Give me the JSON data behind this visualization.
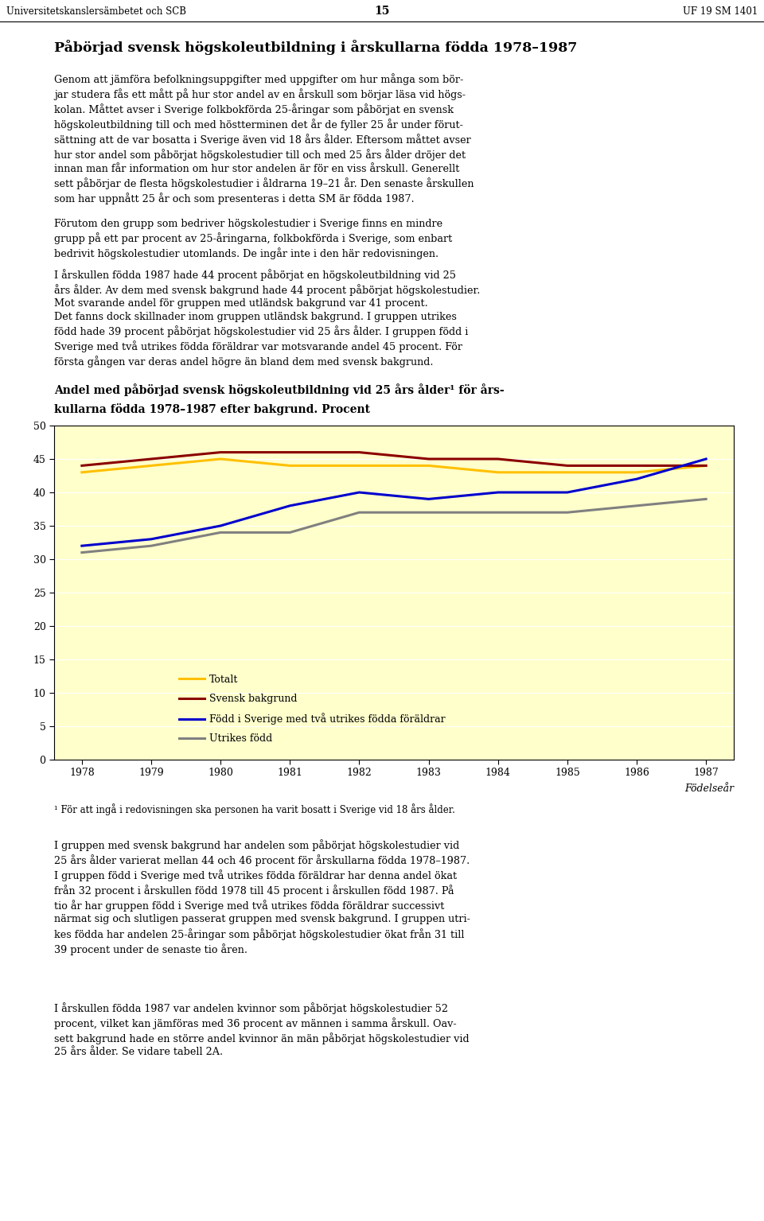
{
  "years": [
    1978,
    1979,
    1980,
    1981,
    1982,
    1983,
    1984,
    1985,
    1986,
    1987
  ],
  "totalt": [
    43,
    44,
    45,
    44,
    44,
    44,
    43,
    43,
    43,
    44
  ],
  "svensk_bakgrund": [
    44,
    45,
    46,
    46,
    46,
    45,
    45,
    44,
    44,
    44
  ],
  "fodd_sverige_utrikes_foraldrar": [
    32,
    33,
    35,
    38,
    40,
    39,
    40,
    40,
    42,
    45
  ],
  "utrikes_fodd": [
    31,
    32,
    34,
    34,
    37,
    37,
    37,
    37,
    38,
    39
  ],
  "color_totalt": "#FFC000",
  "color_svensk": "#8B0000",
  "color_fodd_sverige": "#0000CD",
  "color_utrikes": "#808080",
  "ylim": [
    0,
    50
  ],
  "yticks": [
    0,
    5,
    10,
    15,
    20,
    25,
    30,
    35,
    40,
    45,
    50
  ],
  "bg_color": "#FFFFCC",
  "header_left": "Universitetskanslersämbetet och SCB",
  "header_center": "15",
  "header_right": "UF 19 SM 1401",
  "main_heading": "Påbörjad svensk högskoleutbildning i årskullarna födda 1978–1987",
  "para1": "Genom att jämföra befolkningsuppgifter med uppgifter om hur många som bör-\njar studera fås ett mått på hur stor andel av en årskull som börjar läsa vid högs-\nkolan. Måttet avser i Sverige folkbokförda 25-åringar som påbörjat en svensk\nhögskoleutbildning till och med höstterminen det år de fyller 25 år under förut-\nsättning att de var bosatta i Sverige även vid 18 års ålder. Eftersom måttet avser\nhur stor andel som påbörjat högskolestudier till och med 25 års ålder dröjer det\ninnan man får information om hur stor andelen är för en viss årskull. Generellt\nsett påbörjar de flesta högskolestudier i åldrarna 19–21 år. Den senaste årskullen\nsom har uppnått 25 år och som presenteras i detta SM är födda 1987.",
  "para2": "Förutom den grupp som bedriver högskolestudier i Sverige finns en mindre\ngrupp på ett par procent av 25-åringarna, folkbokförda i Sverige, som enbart\nbedrivit högskolestudier utomlands. De ingår inte i den här redovisningen.",
  "para3": "I årskullen födda 1987 hade 44 procent påbörjat en högskoleutbildning vid 25\nårs ålder. Av dem med svensk bakgrund hade 44 procent påbörjat högskolestudier.\nMot svarande andel för gruppen med utländsk bakgrund var 41 procent.\nDet fanns dock skillnader inom gruppen utländsk bakgrund. I gruppen utrikes\nfödd hade 39 procent påbörjat högskolestudier vid 25 års ålder. I gruppen född i\nSverige med två utrikes födda föräldrar var motsvarande andel 45 procent. För\nförsta gången var deras andel högre än bland dem med svensk bakgrund.",
  "chart_title_line1": "Andel med påbörjad svensk högskoleutbildning vid 25 års ålder¹ för års-",
  "chart_title_line2": "kullarna födda 1978–1987 efter bakgrund. Procent",
  "footnote": "¹ För att ingå i redovisningen ska personen ha varit bosatt i Sverige vid 18 års ålder.",
  "xlabel": "Födelseår",
  "legend_totalt": "Totalt",
  "legend_svensk": "Svensk bakgrund",
  "legend_fodd": "Född i Sverige med två utrikes födda föräldrar",
  "legend_utrikes": "Utrikes född",
  "para4": "I gruppen med svensk bakgrund har andelen som påbörjat högskolestudier vid\n25 års ålder varierat mellan 44 och 46 procent för årskullarna födda 1978–1987.\nI gruppen född i Sverige med två utrikes födda föräldrar har denna andel ökat\nfrån 32 procent i årskullen född 1978 till 45 procent i årskullen född 1987. På\ntio år har gruppen född i Sverige med två utrikes födda föräldrar successivt\nnärmat sig och slutligen passerat gruppen med svensk bakgrund. I gruppen utri-\nkes födda har andelen 25-åringar som påbörjat högskolestudier ökat från 31 till\n39 procent under de senaste tio åren.",
  "para5": "I årskullen födda 1987 var andelen kvinnor som påbörjat högskolestudier 52\nprocent, vilket kan jämföras med 36 procent av männen i samma årskull. Oav-\nsett bakgrund hade en större andel kvinnor än män påbörjat högskolestudier vid\n25 års ålder. Se vidare tabell 2A."
}
